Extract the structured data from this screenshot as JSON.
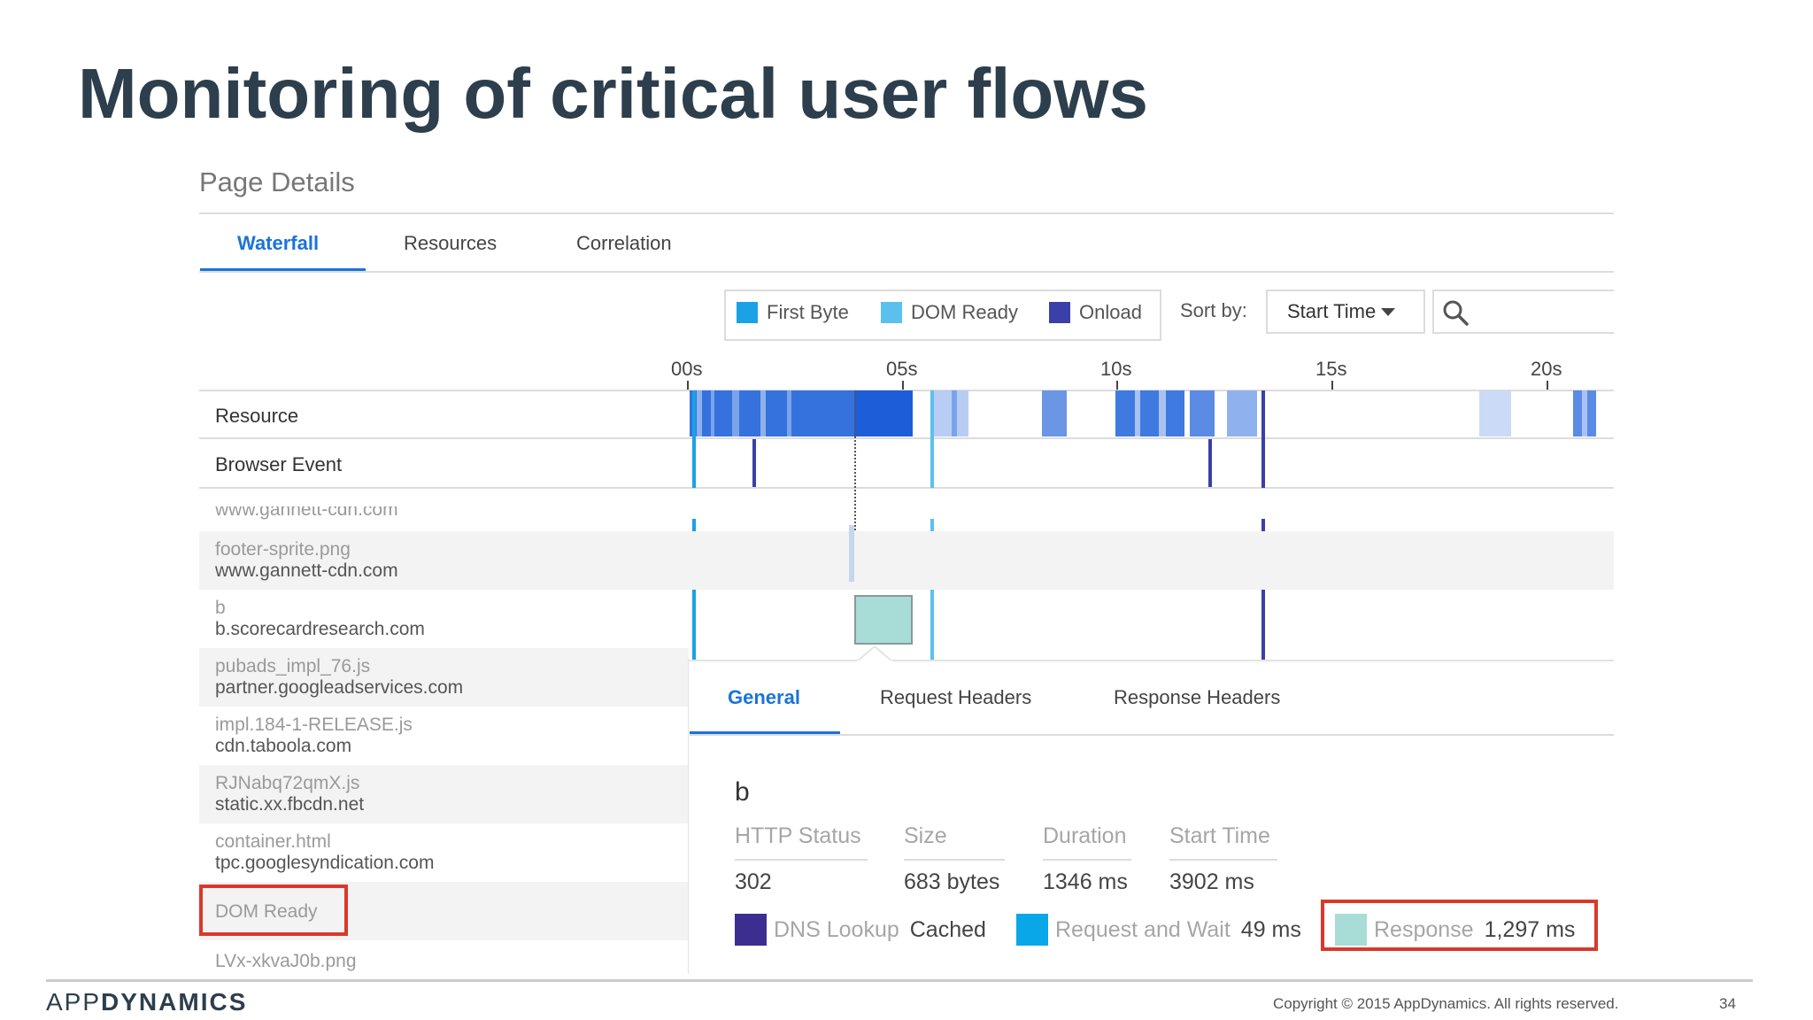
{
  "slide": {
    "title": "Monitoring of critical user flows",
    "brand_light": "APP",
    "brand_bold": "DYNAMICS",
    "copyright": "Copyright © 2015 AppDynamics. All rights reserved.",
    "page_number": "34"
  },
  "page": {
    "heading": "Page Details",
    "tabs": [
      {
        "label": "Waterfall",
        "active": true
      },
      {
        "label": "Resources",
        "active": false
      },
      {
        "label": "Correlation",
        "active": false
      }
    ]
  },
  "legend": [
    {
      "label": "First Byte",
      "color": "#1aa1e6"
    },
    {
      "label": "DOM Ready",
      "color": "#5bc0ee"
    },
    {
      "label": "Onload",
      "color": "#3b3fa8"
    }
  ],
  "sort": {
    "label": "Sort by:",
    "value": "Start Time"
  },
  "search": {
    "icon": "search-icon"
  },
  "timeline": {
    "ticks": [
      "00s",
      "05s",
      "10s",
      "15s",
      "20s"
    ],
    "rows": [
      "Resource",
      "Browser Event"
    ]
  },
  "resources": [
    {
      "name": "www.gannett-cdn.com",
      "host": ""
    },
    {
      "name": "footer-sprite.png",
      "host": "www.gannett-cdn.com"
    },
    {
      "name": "b",
      "host": "b.scorecardresearch.com"
    },
    {
      "name": "pubads_impl_76.js",
      "host": "partner.googleadservices.com"
    },
    {
      "name": "impl.184-1-RELEASE.js",
      "host": "cdn.taboola.com"
    },
    {
      "name": "RJNabq72qmX.js",
      "host": "static.xx.fbcdn.net"
    },
    {
      "name": "container.html",
      "host": "tpc.googlesyndication.com"
    },
    {
      "name": "DOM Ready",
      "host": ""
    },
    {
      "name": "LVx-xkvaJ0b.png",
      "host": ""
    }
  ],
  "details": {
    "tabs": [
      {
        "label": "General",
        "active": true
      },
      {
        "label": "Request Headers",
        "active": false
      },
      {
        "label": "Response Headers",
        "active": false
      }
    ],
    "resource_name": "b",
    "fields": [
      {
        "label": "HTTP Status",
        "value": "302"
      },
      {
        "label": "Size",
        "value": "683 bytes"
      },
      {
        "label": "Duration",
        "value": "1346 ms"
      },
      {
        "label": "Start Time",
        "value": "3902 ms"
      }
    ],
    "timing": [
      {
        "label": "DNS Lookup",
        "value": "Cached",
        "color": "#3c2d91"
      },
      {
        "label": "Request and Wait",
        "value": "49 ms",
        "color": "#0aa7e8"
      },
      {
        "label": "Response",
        "value": "1,297 ms",
        "color": "#a8dcd6"
      }
    ]
  }
}
